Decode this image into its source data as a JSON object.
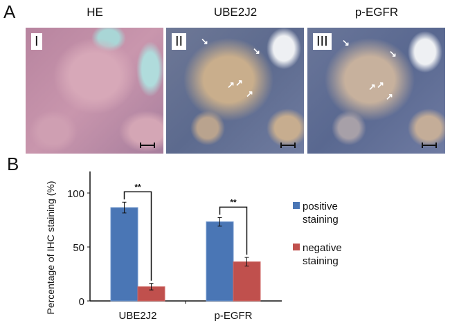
{
  "panel_a": {
    "label": "A",
    "panels": [
      {
        "title": "HE",
        "numeral": "I"
      },
      {
        "title": "UBE2J2",
        "numeral": "II"
      },
      {
        "title": "p-EGFR",
        "numeral": "III"
      }
    ]
  },
  "panel_b": {
    "label": "B"
  },
  "chart_data": {
    "type": "bar",
    "title": "",
    "xlabel": "",
    "ylabel": "Percentage of IHC staining  (%)",
    "ylim": [
      0,
      120
    ],
    "yticks": [
      0,
      50,
      100
    ],
    "categories": [
      "UBE2J2",
      "p-EGFR"
    ],
    "series": [
      {
        "name": "positive staining",
        "legend_lines": [
          "positive",
          "staining"
        ],
        "color": "#4a76b5",
        "values": [
          86.5,
          73.3
        ],
        "errors": [
          5,
          4
        ]
      },
      {
        "name": "negative staining",
        "legend_lines": [
          "negative",
          "staining"
        ],
        "color": "#c0504d",
        "values": [
          13.2,
          36.3
        ],
        "errors": [
          3,
          4
        ]
      }
    ],
    "significance": [
      "**",
      "**"
    ],
    "grid": false,
    "legend": "right"
  }
}
